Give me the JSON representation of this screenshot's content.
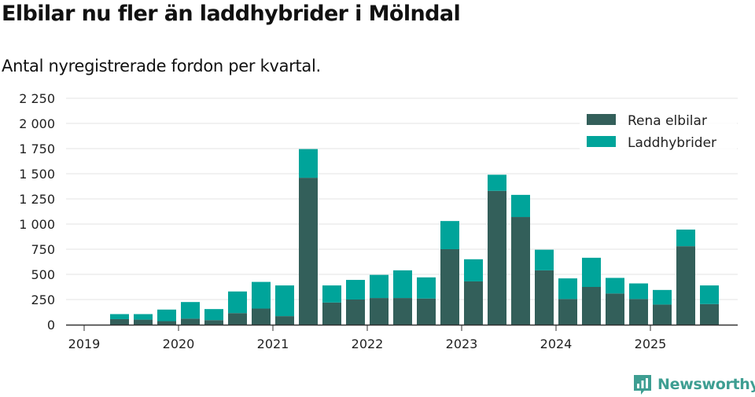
{
  "header": {
    "title": "Elbilar nu fler än laddhybrider i Mölndal",
    "subtitle": "Antal nyregistrerade fordon per kvartal."
  },
  "brand": {
    "name": "Newsworthy",
    "icon": "newsworthy-logo-icon"
  },
  "colors": {
    "elbilar": "#335f5a",
    "laddhybrider": "#00a49a",
    "grid": "#e3e3e3",
    "axis": "#333333"
  },
  "chart_data": {
    "type": "bar",
    "stacked": true,
    "title": "Elbilar nu fler än laddhybrider i Mölndal",
    "subtitle": "Antal nyregistrerade fordon per kvartal.",
    "xlabel": "",
    "ylabel": "",
    "ylim": [
      0,
      2250
    ],
    "yticks": [
      0,
      250,
      500,
      750,
      1000,
      1250,
      1500,
      1750,
      2000,
      2250
    ],
    "ytick_labels": [
      "0",
      "250",
      "500",
      "750",
      "1 000",
      "1 250",
      "1 500",
      "1 750",
      "2 000",
      "2 250"
    ],
    "xtick_labels": [
      "2019",
      "2020",
      "2021",
      "2022",
      "2023",
      "2024",
      "2025"
    ],
    "categories": [
      "2019 Q2",
      "2019 Q3",
      "2019 Q4",
      "2020 Q1",
      "2020 Q2",
      "2020 Q3",
      "2020 Q4",
      "2021 Q1",
      "2021 Q2",
      "2021 Q3",
      "2021 Q4",
      "2022 Q1",
      "2022 Q2",
      "2022 Q3",
      "2022 Q4",
      "2023 Q1",
      "2023 Q2",
      "2023 Q3",
      "2023 Q4",
      "2024 Q1",
      "2024 Q2",
      "2024 Q3",
      "2024 Q4",
      "2025 Q1",
      "2025 Q2",
      "2025 Q3"
    ],
    "series": [
      {
        "name": "Rena elbilar",
        "color": "#335f5a",
        "values": [
          55,
          50,
          35,
          60,
          45,
          115,
          160,
          85,
          1460,
          220,
          250,
          265,
          265,
          260,
          750,
          430,
          1330,
          1070,
          540,
          255,
          375,
          310,
          255,
          200,
          780,
          205
        ]
      },
      {
        "name": "Laddhybrider",
        "color": "#00a49a",
        "values": [
          50,
          55,
          115,
          165,
          110,
          215,
          265,
          305,
          285,
          170,
          195,
          230,
          275,
          210,
          280,
          220,
          160,
          220,
          205,
          205,
          290,
          155,
          155,
          145,
          165,
          185
        ]
      }
    ],
    "legend_position": "top-right",
    "grid": true
  }
}
